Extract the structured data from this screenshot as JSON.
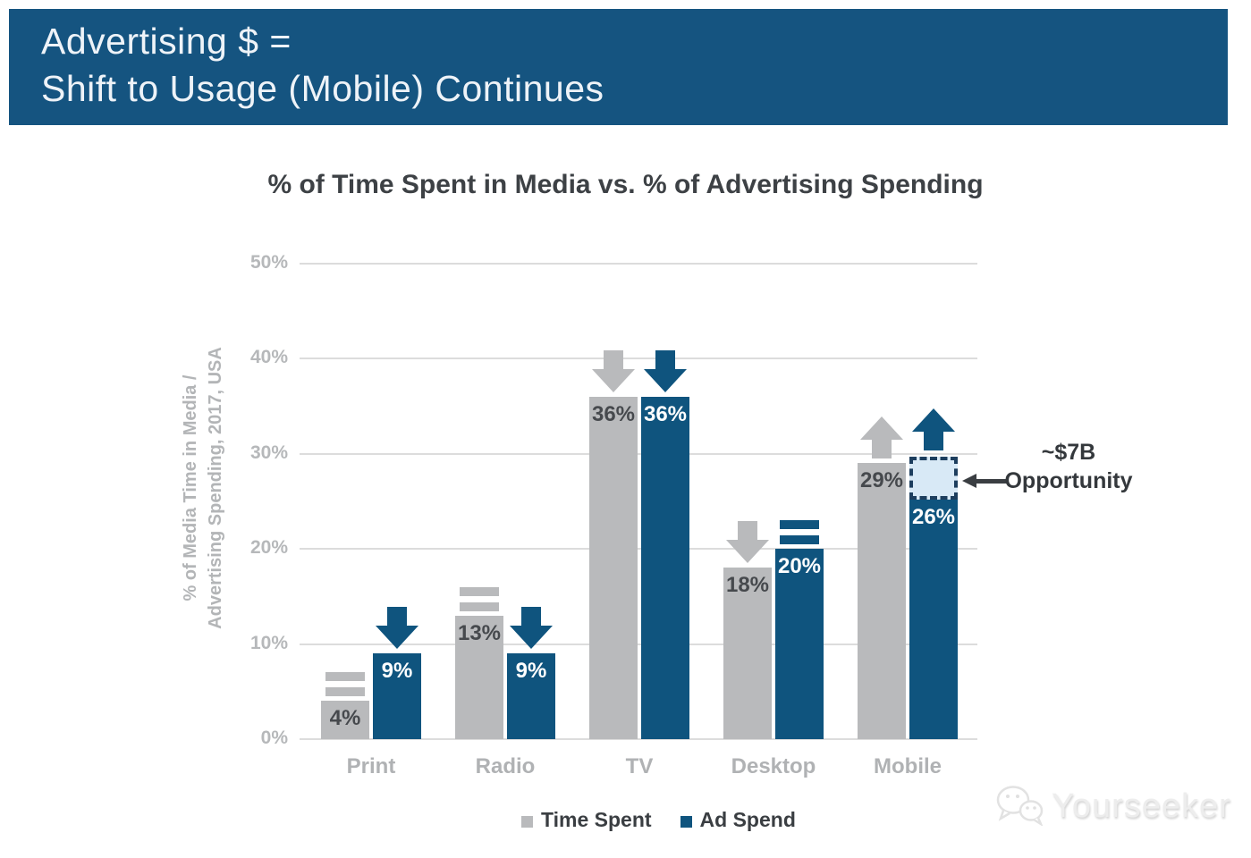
{
  "banner": {
    "line1": "Advertising $ =",
    "line2": "Shift to Usage (Mobile) Continues",
    "bg": "#155480"
  },
  "chart_data": {
    "type": "bar",
    "title": "% of Time Spent in Media vs. % of Advertising Spending",
    "ylabel_line1": "% of Media Time in Media /",
    "ylabel_line2": "Advertising Spending, 2017, USA",
    "categories": [
      "Print",
      "Radio",
      "TV",
      "Desktop",
      "Mobile"
    ],
    "series": [
      {
        "name": "Time Spent",
        "color": "#b9babc",
        "values": [
          4,
          13,
          36,
          18,
          29
        ],
        "value_labels": [
          "4%",
          "13%",
          "36%",
          "18%",
          "29%"
        ],
        "label_color": "#46494d",
        "trends": [
          "equal",
          "equal",
          "down",
          "down",
          "up"
        ]
      },
      {
        "name": "Ad Spend",
        "color": "#0f547e",
        "values": [
          9,
          9,
          36,
          20,
          26
        ],
        "value_labels": [
          "9%",
          "9%",
          "36%",
          "20%",
          "26%"
        ],
        "label_color": "#ffffff",
        "trends": [
          "down",
          "down",
          "down",
          "equal",
          "up"
        ]
      }
    ],
    "ylim": [
      0,
      50
    ],
    "yticks": [
      {
        "value": 0,
        "label": "0%"
      },
      {
        "value": 10,
        "label": "10%"
      },
      {
        "value": 20,
        "label": "20%"
      },
      {
        "value": 30,
        "label": "30%"
      },
      {
        "value": 40,
        "label": "40%"
      },
      {
        "value": 50,
        "label": "50%"
      }
    ],
    "grid": true,
    "legend_position": "bottom",
    "annotation": {
      "line1": "~$7B",
      "line2": "Opportunity",
      "attached_to": "Mobile Ad Spend bar gap",
      "gap_from_value": 26,
      "gap_to_value": 29,
      "box_fill": "#d8e9f6",
      "box_border": "#1d3e5e",
      "arrow_color": "#3a3e42"
    }
  },
  "watermark": {
    "text": "Yourseeker"
  }
}
